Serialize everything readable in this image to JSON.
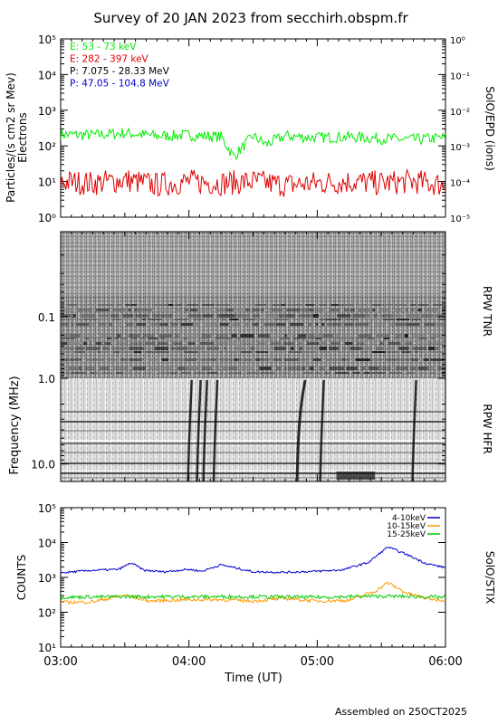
{
  "title": "Survey of 20 JAN 2023 from secchirh.obspm.fr",
  "footer": "Assembled on 25OCT2025",
  "xaxis": {
    "label": "Time (UT)",
    "ticks": [
      "03:00",
      "04:00",
      "05:00",
      "06:00"
    ],
    "range_hours": [
      3.0,
      6.0
    ]
  },
  "chart_data": [
    {
      "panel": "SoIO/EPD",
      "type": "line",
      "ylabel": "Particles/(s cm2 sr Mev)",
      "ylabel2": "Electrons",
      "right_label": "SolO/EPD (ions)",
      "y_scale": "log",
      "ylim": [
        1,
        100000
      ],
      "y_ticks": [
        "10⁰",
        "10¹",
        "10²",
        "10³",
        "10⁴",
        "10⁵"
      ],
      "y2_scale": "log",
      "y2lim": [
        1e-05,
        1
      ],
      "y2_ticks": [
        "10⁻⁵",
        "10⁻⁴",
        "10⁻³",
        "10⁻²",
        "10⁻¹",
        "10⁰"
      ],
      "legend_position": "top-left",
      "legend": [
        {
          "label": "E: 53 - 73 keV",
          "color": "#00ee00"
        },
        {
          "label": "E: 282 - 397 keV",
          "color": "#dd0000"
        },
        {
          "label": "P: 7.075 - 28.33 MeV",
          "color": "#000000"
        },
        {
          "label": "P: 47.05 - 104.8 MeV",
          "color": "#0000cc"
        }
      ],
      "series": [
        {
          "name": "E: 53 - 73 keV",
          "color": "#00ee00",
          "x": [
            3.0,
            3.25,
            3.5,
            3.75,
            4.0,
            4.25,
            4.35,
            4.5,
            4.6,
            4.75,
            5.0,
            5.25,
            5.5,
            5.75,
            6.0
          ],
          "values": [
            210,
            200,
            230,
            190,
            200,
            180,
            50,
            190,
            110,
            190,
            170,
            180,
            160,
            150,
            170
          ]
        },
        {
          "name": "E: 282 - 397 keV",
          "color": "#dd0000",
          "x": [
            3.0,
            3.25,
            3.5,
            3.75,
            4.0,
            4.25,
            4.5,
            4.75,
            5.0,
            5.25,
            5.5,
            5.75,
            6.0
          ],
          "values": [
            10,
            9,
            11,
            8,
            10,
            9,
            10,
            8,
            9,
            10,
            9,
            10,
            8
          ]
        }
      ]
    },
    {
      "panel": "RPW",
      "type": "heatmap",
      "ylabel": "Frequency (MHz)",
      "y_scale": "log",
      "y_inverted": true,
      "y_ticks": [
        "0.1",
        "1.0",
        "10.0"
      ],
      "sub_panels": [
        {
          "label": "RPW TNR",
          "freq_range_mhz": [
            0.004,
            1.0
          ]
        },
        {
          "label": "RPW HFR",
          "freq_range_mhz": [
            1.0,
            16.0
          ]
        }
      ],
      "colormap": "grayscale",
      "bursts_hours": [
        4.0,
        4.07,
        4.12,
        4.2,
        4.85,
        5.03,
        5.75
      ]
    },
    {
      "panel": "SoIO/STIX",
      "type": "line",
      "ylabel": "COUNTS",
      "right_label": "SolO/STIX",
      "y_scale": "log",
      "ylim": [
        10,
        100000
      ],
      "y_ticks": [
        "10¹",
        "10²",
        "10³",
        "10⁴",
        "10⁵"
      ],
      "legend_position": "top-right",
      "series": [
        {
          "name": "4-10keV",
          "color": "#0000cc",
          "x": [
            3.0,
            3.25,
            3.45,
            3.55,
            3.65,
            3.8,
            4.0,
            4.1,
            4.25,
            4.5,
            4.75,
            5.0,
            5.2,
            5.4,
            5.55,
            5.7,
            5.85,
            6.0
          ],
          "values": [
            1350,
            1600,
            1700,
            2600,
            1600,
            1450,
            1700,
            1500,
            2300,
            1450,
            1400,
            1500,
            1650,
            2700,
            7500,
            4500,
            2500,
            1900
          ]
        },
        {
          "name": "10-15keV",
          "color": "#ff9900",
          "x": [
            3.0,
            3.25,
            3.5,
            3.7,
            4.0,
            4.25,
            4.5,
            4.75,
            5.0,
            5.25,
            5.45,
            5.55,
            5.7,
            5.85,
            6.0
          ],
          "values": [
            190,
            200,
            310,
            210,
            230,
            230,
            210,
            250,
            210,
            220,
            400,
            700,
            350,
            250,
            220
          ]
        },
        {
          "name": "15-25keV",
          "color": "#00cc00",
          "x": [
            3.0,
            3.5,
            4.0,
            4.5,
            5.0,
            5.5,
            6.0
          ],
          "values": [
            270,
            280,
            280,
            280,
            270,
            290,
            270
          ]
        }
      ]
    }
  ]
}
